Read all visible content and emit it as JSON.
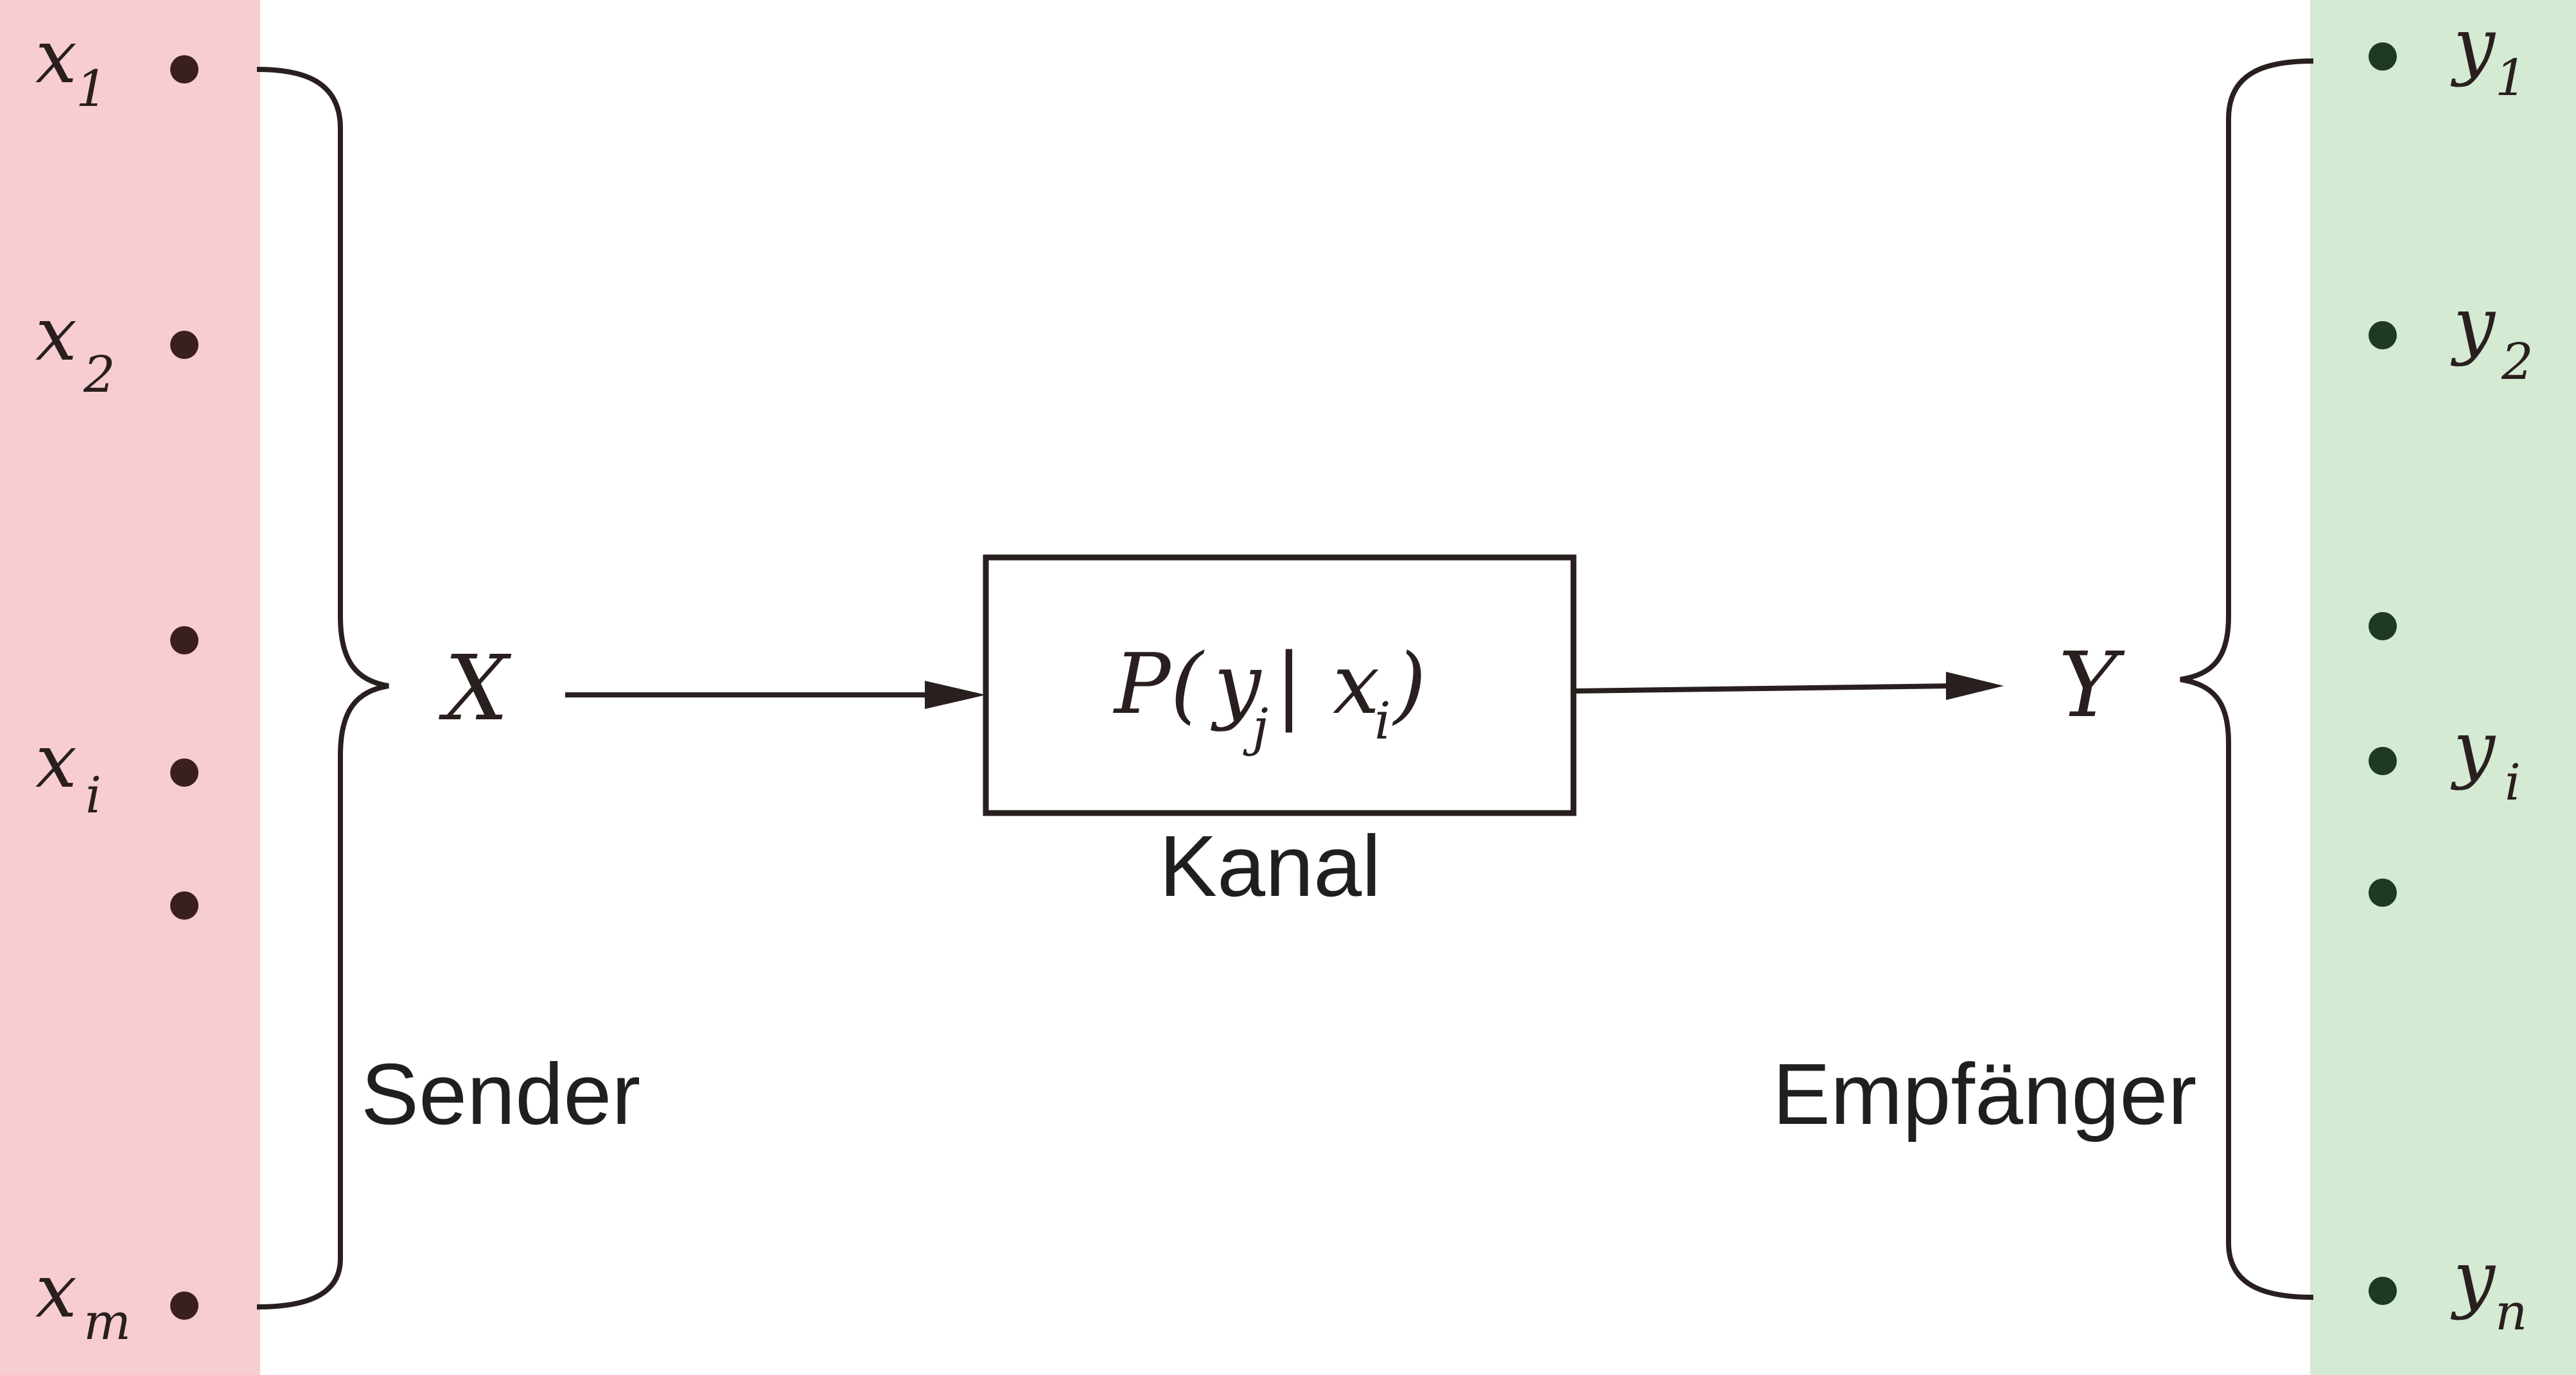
{
  "colors": {
    "sender_panel": "#f7cdd1",
    "receiver_panel": "#d4ead3",
    "ink": "#2a1f1f",
    "sender_dot": "#3a1f1f",
    "receiver_dot": "#1f3a24"
  },
  "sender": {
    "label": "Sender",
    "symbol_base": "X",
    "symbols": [
      {
        "base": "x",
        "sub": "1"
      },
      {
        "base": "x",
        "sub": "2"
      },
      {
        "base": "",
        "sub": ""
      },
      {
        "base": "x",
        "sub": "i"
      },
      {
        "base": "",
        "sub": ""
      },
      {
        "base": "x",
        "sub": "m"
      }
    ]
  },
  "channel": {
    "label": "Kanal",
    "formula": {
      "p": "P(",
      "y": "y",
      "y_sub": "j",
      "bar": " |",
      "x": "x",
      "x_sub": "i",
      "close": " )"
    }
  },
  "receiver": {
    "label": "Empfänger",
    "symbol_base": "Y",
    "symbols": [
      {
        "base": "y",
        "sub": "1"
      },
      {
        "base": "y",
        "sub": "2"
      },
      {
        "base": "",
        "sub": ""
      },
      {
        "base": "y",
        "sub": "i"
      },
      {
        "base": "",
        "sub": ""
      },
      {
        "base": "y",
        "sub": "n"
      }
    ]
  }
}
